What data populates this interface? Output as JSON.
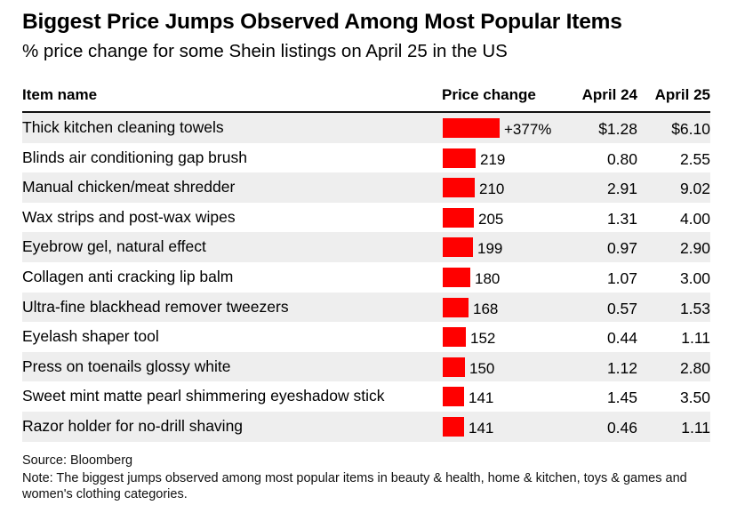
{
  "title": "Biggest Price Jumps Observed Among Most Popular Items",
  "subtitle": "% price change for some Shein listings on April 25 in the US",
  "columns": {
    "item": "Item name",
    "change": "Price change",
    "april24": "April 24",
    "april25": "April 25"
  },
  "colors": {
    "bar": "#ff0000",
    "row_shade": "#eeeeee"
  },
  "chart_data": {
    "type": "table",
    "title": "Biggest Price Jumps Observed Among Most Popular Items",
    "subtitle": "% price change for some Shein listings on April 25 in the US",
    "headers": [
      "Item name",
      "Price change",
      "April 24",
      "April 25"
    ],
    "bar_max": 377,
    "rows": [
      {
        "item": "Thick kitchen cleaning towels",
        "change": 377,
        "change_label": "+377%",
        "april24": "$1.28",
        "april25": "$6.10"
      },
      {
        "item": "Blinds air conditioning gap brush",
        "change": 219,
        "change_label": "219",
        "april24": "0.80",
        "april25": "2.55"
      },
      {
        "item": "Manual chicken/meat shredder",
        "change": 210,
        "change_label": "210",
        "april24": "2.91",
        "april25": "9.02"
      },
      {
        "item": "Wax strips and post-wax wipes",
        "change": 205,
        "change_label": "205",
        "april24": "1.31",
        "april25": "4.00"
      },
      {
        "item": "Eyebrow gel, natural effect",
        "change": 199,
        "change_label": "199",
        "april24": "0.97",
        "april25": "2.90"
      },
      {
        "item": "Collagen anti cracking lip balm",
        "change": 180,
        "change_label": "180",
        "april24": "1.07",
        "april25": "3.00"
      },
      {
        "item": "Ultra-fine blackhead remover tweezers",
        "change": 168,
        "change_label": "168",
        "april24": "0.57",
        "april25": "1.53"
      },
      {
        "item": "Eyelash shaper tool",
        "change": 152,
        "change_label": "152",
        "april24": "0.44",
        "april25": "1.11"
      },
      {
        "item": "Press on toenails glossy white",
        "change": 150,
        "change_label": "150",
        "april24": "1.12",
        "april25": "2.80"
      },
      {
        "item": "Sweet mint matte pearl shimmering eyeshadow stick",
        "change": 141,
        "change_label": "141",
        "april24": "1.45",
        "april25": "3.50"
      },
      {
        "item": "Razor holder for no-drill shaving",
        "change": 141,
        "change_label": "141",
        "april24": "0.46",
        "april25": "1.11"
      }
    ]
  },
  "footer": {
    "source": "Source: Bloomberg",
    "note": "Note: The biggest jumps observed among most popular items in beauty & health, home & kitchen, toys & games and women's clothing categories."
  }
}
